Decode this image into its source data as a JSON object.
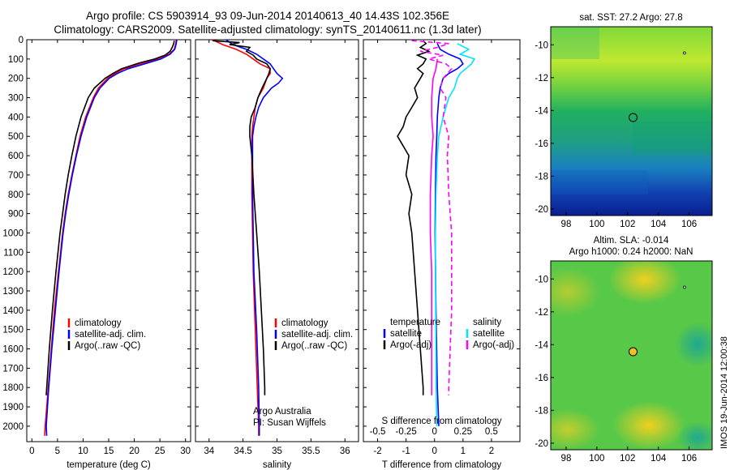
{
  "header": {
    "title_line1": "Argo profile: CS 5903914_93 09-Jun-2014 20140613_40 14.43S 102.356E",
    "title_line2": "Climatology: CARS2009. Satellite-adjusted climatology: synTS_20140611.nc (1.3d later)"
  },
  "credits": {
    "line1": "Argo Australia",
    "line2": "PI: Susan Wijffels",
    "watermark": "IMOS 19-Jun-2014 12:00:38"
  },
  "maps": {
    "sst_title": "sat. SST: 27.2 Argo: 27.8",
    "sla_title1": "Altim. SLA: -0.014",
    "sla_title2": "Argo h1000: 0.24 h2000: NaN",
    "x_ticks": [
      98,
      100,
      102,
      104,
      106
    ],
    "y_ticks": [
      -10,
      -12,
      -14,
      -16,
      -18,
      -20
    ],
    "xlim": [
      97,
      107.5
    ],
    "ylim": [
      -20.4,
      -8.9
    ],
    "profile_location": {
      "lon": 102.356,
      "lat": -14.43
    },
    "island": {
      "lon": 105.7,
      "lat": -10.5
    }
  },
  "chart_data": [
    {
      "id": "temperature",
      "type": "line",
      "xlabel": "temperature (deg C)",
      "ylabel": "",
      "xlim": [
        -1,
        31
      ],
      "ylim": [
        2080,
        0
      ],
      "x_ticks": [
        0,
        5,
        10,
        15,
        20,
        25,
        30
      ],
      "y_ticks": [
        0,
        100,
        200,
        300,
        400,
        500,
        600,
        700,
        800,
        900,
        1000,
        1100,
        1200,
        1300,
        1400,
        1500,
        1600,
        1700,
        1800,
        1900,
        2000
      ],
      "legend": [
        "climatology",
        "satellite-adj. clim.",
        "Argo(..raw -QC)"
      ],
      "series": [
        {
          "name": "climatology",
          "color": "#ff0000",
          "depth": [
            0,
            20,
            50,
            75,
            100,
            125,
            150,
            175,
            200,
            250,
            300,
            400,
            500,
            600,
            700,
            800,
            900,
            1000,
            1200,
            1400,
            1600,
            1800,
            2000,
            2050
          ],
          "values": [
            28.2,
            28.1,
            27.8,
            26.8,
            24.5,
            21.0,
            18.0,
            16.2,
            14.8,
            13.0,
            12.0,
            10.5,
            9.4,
            8.6,
            7.8,
            7.1,
            6.5,
            6.0,
            5.2,
            4.4,
            3.8,
            3.2,
            2.6,
            2.5
          ]
        },
        {
          "name": "satellite-adj. clim.",
          "color": "#0000ff",
          "depth": [
            0,
            20,
            50,
            75,
            100,
            125,
            150,
            175,
            200,
            250,
            300,
            400,
            500,
            600,
            700,
            800,
            900,
            1000,
            1200,
            1400,
            1600,
            1800,
            2000,
            2050
          ],
          "values": [
            28.3,
            28.2,
            27.9,
            27.0,
            25.2,
            22.0,
            18.8,
            16.7,
            15.1,
            13.3,
            12.2,
            10.7,
            9.6,
            8.7,
            7.9,
            7.2,
            6.6,
            6.1,
            5.3,
            4.6,
            3.9,
            3.3,
            2.8,
            2.9
          ]
        },
        {
          "name": "Argo(..raw -QC)",
          "color": "#000000",
          "depth": [
            5,
            20,
            40,
            60,
            80,
            100,
            120,
            150,
            175,
            200,
            250,
            300,
            400,
            500,
            600,
            700,
            800,
            900,
            1000,
            1200,
            1400,
            1600,
            1800,
            1840
          ],
          "values": [
            27.8,
            27.7,
            27.4,
            27.0,
            26.0,
            24.0,
            21.0,
            17.5,
            15.8,
            14.3,
            12.2,
            11.0,
            9.6,
            8.6,
            7.8,
            7.1,
            6.5,
            6.0,
            5.5,
            4.7,
            4.0,
            3.4,
            2.9,
            2.8
          ]
        }
      ]
    },
    {
      "id": "salinity",
      "type": "line",
      "xlabel": "salinity",
      "ylabel": "",
      "xlim": [
        33.8,
        36.2
      ],
      "ylim": [
        2080,
        0
      ],
      "x_ticks": [
        34,
        34.5,
        35,
        35.5,
        36
      ],
      "legend": [
        "climatology",
        "satellite-adj. clim.",
        "Argo(..raw -QC)"
      ],
      "series": [
        {
          "name": "climatology",
          "color": "#ff0000",
          "depth": [
            0,
            25,
            50,
            75,
            100,
            125,
            150,
            175,
            200,
            250,
            300,
            350,
            400,
            450,
            500,
            600,
            800,
            1000,
            1200,
            1500,
            1800,
            2000,
            2050
          ],
          "values": [
            34.05,
            34.2,
            34.4,
            34.55,
            34.65,
            34.75,
            34.9,
            34.9,
            34.85,
            34.8,
            34.72,
            34.68,
            34.66,
            34.64,
            34.63,
            34.63,
            34.63,
            34.64,
            34.65,
            34.68,
            34.71,
            34.73,
            34.73
          ]
        },
        {
          "name": "satellite-adj. clim.",
          "color": "#0000ff",
          "depth": [
            0,
            25,
            50,
            75,
            100,
            125,
            150,
            175,
            200,
            225,
            250,
            300,
            350,
            400,
            450,
            500,
            600,
            800,
            1000,
            1200,
            1500,
            1800,
            2000,
            2050
          ],
          "values": [
            34.25,
            34.35,
            34.55,
            34.7,
            34.8,
            34.9,
            34.95,
            35.0,
            35.08,
            35.02,
            34.92,
            34.8,
            34.73,
            34.69,
            34.66,
            34.64,
            34.64,
            34.64,
            34.65,
            34.66,
            34.7,
            34.73,
            34.74,
            34.74
          ]
        },
        {
          "name": "Argo(..raw -QC)",
          "color": "#000000",
          "depth": [
            5,
            15,
            25,
            40,
            60,
            80,
            100,
            125,
            150,
            175,
            200,
            250,
            300,
            350,
            400,
            450,
            500,
            600,
            800,
            1000,
            1200,
            1400,
            1600,
            1800,
            1840
          ],
          "values": [
            34.05,
            34.45,
            34.3,
            34.6,
            34.55,
            34.65,
            34.7,
            34.85,
            34.9,
            34.88,
            34.85,
            34.78,
            34.72,
            34.68,
            34.62,
            34.6,
            34.6,
            34.63,
            34.66,
            34.7,
            34.74,
            34.77,
            34.8,
            34.82,
            34.82
          ]
        }
      ]
    },
    {
      "id": "differences",
      "type": "line",
      "xlabel": "T difference from climatology",
      "xlabel2": "S difference from climatology",
      "xlim": [
        -2.5,
        3
      ],
      "ylim": [
        2080,
        0
      ],
      "x_ticks": [
        -2,
        -1,
        0,
        1,
        2
      ],
      "s_ticks_labels": [
        "-0.5",
        "-0.25",
        "0",
        "0.25",
        "0.5"
      ],
      "s_ticks_at": [
        -2,
        -1,
        0,
        1,
        2
      ],
      "legend_temperature_title": "temperature",
      "legend_salinity_title": "salinity",
      "legend": [
        "satellite",
        "Argo(-adj)",
        "satellite",
        "Argo(-adj)"
      ],
      "series": [
        {
          "name": "temperature satellite",
          "color": "#0000ff",
          "dashed": false,
          "depth": [
            20,
            50,
            75,
            100,
            125,
            150,
            175,
            200,
            250,
            300,
            400,
            500,
            600,
            800,
            1000,
            1400,
            1800,
            2000
          ],
          "values": [
            0.1,
            0.2,
            0.5,
            0.9,
            1.0,
            0.8,
            0.5,
            0.3,
            0.2,
            0.15,
            0.1,
            0.08,
            0.05,
            0.03,
            0.02,
            0.05,
            0.1,
            0.15
          ]
        },
        {
          "name": "temperature Argo(-adj)",
          "color": "#000000",
          "dashed": false,
          "depth": [
            5,
            20,
            40,
            60,
            80,
            100,
            125,
            150,
            175,
            200,
            250,
            300,
            350,
            400,
            450,
            500,
            600,
            700,
            800,
            900,
            1000,
            1200,
            1400,
            1600,
            1800,
            1840
          ],
          "values": [
            -0.4,
            -0.3,
            -0.5,
            -0.2,
            -0.6,
            -0.3,
            -0.4,
            -0.6,
            -0.4,
            -0.5,
            -0.7,
            -0.6,
            -0.8,
            -1.0,
            -1.1,
            -1.3,
            -0.9,
            -1.0,
            -0.8,
            -0.9,
            -0.8,
            -0.7,
            -0.6,
            -0.5,
            -0.4,
            -0.4
          ]
        },
        {
          "name": "salinity satellite",
          "color": "#00e5ff",
          "dashed": false,
          "depth": [
            20,
            50,
            75,
            100,
            125,
            150,
            175,
            200,
            250,
            300,
            400,
            500,
            600,
            800,
            1000,
            1400,
            1800,
            2000
          ],
          "values": [
            0.8,
            1.2,
            0.9,
            1.4,
            1.3,
            1.1,
            0.9,
            0.8,
            0.7,
            0.5,
            0.3,
            0.15,
            0.1,
            0.05,
            0.03,
            0.04,
            0.06,
            0.08
          ]
        },
        {
          "name": "salinity Argo(-adj)",
          "color": "#ff00ff",
          "dashed": true,
          "depth": [
            5,
            20,
            40,
            60,
            80,
            100,
            125,
            150,
            200,
            250,
            300,
            400,
            500,
            600,
            800,
            1000,
            1200,
            1400,
            1600,
            1800,
            1840
          ],
          "values": [
            -0.8,
            0.5,
            0.1,
            -0.5,
            0.3,
            -0.2,
            0.4,
            0.6,
            0.3,
            0.2,
            0.4,
            0.3,
            0.5,
            0.45,
            0.5,
            0.6,
            0.6,
            0.6,
            0.55,
            0.5,
            0.5
          ]
        },
        {
          "name": "salinity Argo(-adj) solid",
          "color": "#ff00ff",
          "dashed": false,
          "depth": [
            100,
            150,
            200,
            300,
            400,
            500,
            600,
            800,
            1000,
            1200,
            1400,
            1600,
            1800,
            1840
          ],
          "values": [
            0.1,
            0.05,
            -0.05,
            -0.1,
            -0.1,
            -0.05,
            -0.1,
            -0.15,
            -0.15,
            -0.1,
            -0.1,
            -0.1,
            -0.1,
            -0.1
          ]
        }
      ]
    }
  ]
}
